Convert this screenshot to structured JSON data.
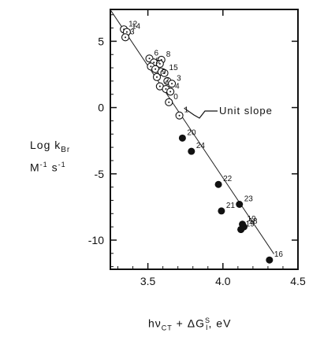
{
  "chart_data": {
    "type": "scatter",
    "ylabel_line1": "Log  k",
    "ylabel_line1_sub": "Br",
    "ylabel_line2": "M",
    "ylabel_line2_sup1": "-1",
    "ylabel_line2_mid": " s",
    "ylabel_line2_sup2": "-1",
    "xlabel_main": "hν",
    "xlabel_sub1": "CT",
    "xlabel_mid": " + ΔG",
    "xlabel_sup": "S",
    "xlabel_sub2": "I",
    "xlabel_unit": ",   eV",
    "xlim": [
      3.25,
      4.5
    ],
    "ylim": [
      -12.2,
      7.4
    ],
    "x_ticks": [
      3.5,
      4.0,
      4.5
    ],
    "x_tick_labels": [
      "3.5",
      "4.0",
      "4.5"
    ],
    "y_ticks": [
      5,
      0,
      -5,
      -10
    ],
    "y_tick_labels": [
      "5",
      "0",
      "-5",
      "-10"
    ],
    "fit_line": {
      "slope": -16.9,
      "intercept": 62.3,
      "x_range": [
        3.25,
        4.34
      ]
    },
    "annotation": "Unit slope",
    "series": [
      {
        "marker": "circle-dot",
        "points": [
          {
            "label": "12",
            "x": 3.34,
            "y": 5.9
          },
          {
            "label": "14",
            "x": 3.36,
            "y": 5.7
          },
          {
            "label": "3",
            "x": 3.35,
            "y": 5.3
          },
          {
            "label": "6",
            "x": 3.51,
            "y": 3.7
          },
          {
            "label": "8",
            "x": 3.59,
            "y": 3.6
          },
          {
            "label": "",
            "x": 3.54,
            "y": 3.4
          },
          {
            "label": "",
            "x": 3.58,
            "y": 3.3
          },
          {
            "label": "5",
            "x": 3.52,
            "y": 3.1
          },
          {
            "label": "",
            "x": 3.55,
            "y": 2.9
          },
          {
            "label": "",
            "x": 3.59,
            "y": 2.7
          },
          {
            "label": "15",
            "x": 3.61,
            "y": 2.6
          },
          {
            "label": "9",
            "x": 3.56,
            "y": 2.3
          },
          {
            "label": "",
            "x": 3.63,
            "y": 2.0
          },
          {
            "label": "3",
            "x": 3.66,
            "y": 1.8
          },
          {
            "label": "2",
            "x": 3.58,
            "y": 1.6
          },
          {
            "label": "",
            "x": 3.62,
            "y": 1.4
          },
          {
            "label": "4",
            "x": 3.65,
            "y": 1.2
          },
          {
            "label": "0",
            "x": 3.64,
            "y": 0.4
          },
          {
            "label": "1",
            "x": 3.71,
            "y": -0.6
          }
        ]
      },
      {
        "marker": "filled",
        "points": [
          {
            "label": "20",
            "x": 3.73,
            "y": -2.3
          },
          {
            "label": "24",
            "x": 3.79,
            "y": -3.3
          },
          {
            "label": "22",
            "x": 3.97,
            "y": -5.8
          },
          {
            "label": "21",
            "x": 3.99,
            "y": -7.8
          },
          {
            "label": "23",
            "x": 4.11,
            "y": -7.3
          },
          {
            "label": "19",
            "x": 4.13,
            "y": -8.8
          },
          {
            "label": "",
            "x": 4.12,
            "y": -9.2
          },
          {
            "label": "19",
            "x": 4.12,
            "y": -9.2
          },
          {
            "label": "18",
            "x": 4.14,
            "y": -9.0
          },
          {
            "label": "16",
            "x": 4.31,
            "y": -11.5
          }
        ]
      }
    ]
  }
}
